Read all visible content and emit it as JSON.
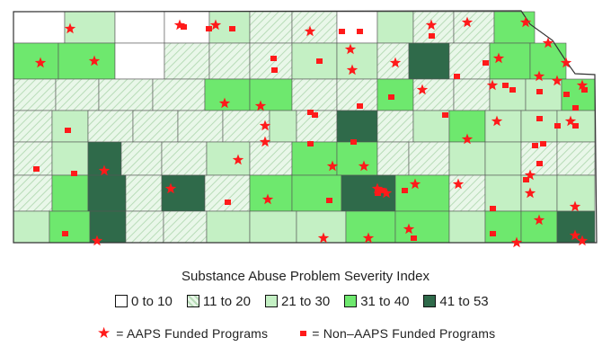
{
  "legend": {
    "title": "Substance Abuse Problem Severity Index",
    "classes": [
      {
        "label": "0 to 10",
        "color": "#ffffff",
        "pattern": "none"
      },
      {
        "label": "11 to 20",
        "color": "#e6f6e6",
        "pattern": "hatch"
      },
      {
        "label": "21 to 30",
        "color": "#c4f0c4",
        "pattern": "none"
      },
      {
        "label": "31 to 40",
        "color": "#6ee86e",
        "pattern": "none"
      },
      {
        "label": "41 to 53",
        "color": "#2f6a4a",
        "pattern": "none"
      }
    ],
    "aaps_symbol_label": "= AAPS Funded Programs",
    "non_aaps_symbol_label": "= Non–AAPS Funded Programs",
    "aaps_icon": "red-star-icon",
    "non_aaps_icon": "red-square-icon",
    "marker_color": "#ff1a1a"
  }
}
